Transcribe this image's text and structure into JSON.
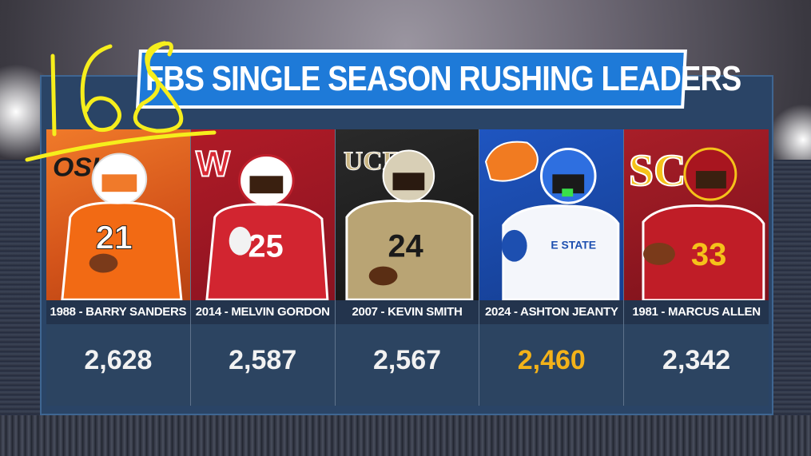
{
  "title": "FBS SINGLE SEASON RUSHING LEADERS",
  "annotation": "168",
  "leaders": [
    {
      "caption": "1988 - BARRY SANDERS",
      "yards": "2,628",
      "team_color": "#e8641b",
      "accent": "#ffffff",
      "highlight": false,
      "school_icon": "oklahoma-state-logo-icon"
    },
    {
      "caption": "2014 - MELVIN GORDON",
      "yards": "2,587",
      "team_color": "#c0202c",
      "accent": "#ffffff",
      "highlight": false,
      "school_icon": "wisconsin-logo-icon"
    },
    {
      "caption": "2007 - KEVIN SMITH",
      "yards": "2,567",
      "team_color": "#1c1c1c",
      "accent": "#bca77b",
      "highlight": false,
      "school_icon": "ucf-logo-icon"
    },
    {
      "caption": "2024 - ASHTON JEANTY",
      "yards": "2,460",
      "team_color": "#1d4fb0",
      "accent": "#f17b21",
      "highlight": true,
      "school_icon": "boise-state-logo-icon"
    },
    {
      "caption": "1981 - MARCUS ALLEN",
      "yards": "2,342",
      "team_color": "#9b1c25",
      "accent": "#f5c21a",
      "highlight": false,
      "school_icon": "usc-logo-icon"
    }
  ],
  "colors": {
    "banner_blue": "#1e7ad8",
    "board_blue": "#2a4466",
    "highlight_gold": "#f3b219",
    "annotation_yellow": "#f6ee1c"
  }
}
